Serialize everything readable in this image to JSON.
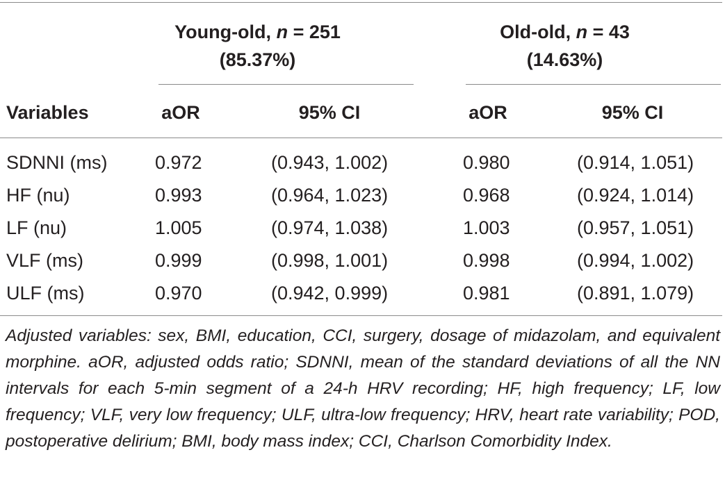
{
  "groups": [
    {
      "label": "Young-old, ",
      "n_symbol": "n",
      "n_value": " = 251",
      "pct": "(85.37%)"
    },
    {
      "label": "Old-old, ",
      "n_symbol": "n",
      "n_value": " = 43",
      "pct": "(14.63%)"
    }
  ],
  "columns": {
    "variables": "Variables",
    "aor1": "aOR",
    "ci1": "95% CI",
    "aor2": "aOR",
    "ci2": "95% CI"
  },
  "rows": [
    {
      "variable": "SDNNI (ms)",
      "aor1": "0.972",
      "ci1": "(0.943, 1.002)",
      "aor2": "0.980",
      "ci2": "(0.914, 1.051)"
    },
    {
      "variable": "HF (nu)",
      "aor1": "0.993",
      "ci1": "(0.964, 1.023)",
      "aor2": "0.968",
      "ci2": "(0.924, 1.014)"
    },
    {
      "variable": "LF (nu)",
      "aor1": "1.005",
      "ci1": "(0.974, 1.038)",
      "aor2": "1.003",
      "ci2": "(0.957, 1.051)"
    },
    {
      "variable": "VLF (ms)",
      "aor1": "0.999",
      "ci1": "(0.998, 1.001)",
      "aor2": "0.998",
      "ci2": "(0.994, 1.002)"
    },
    {
      "variable": "ULF (ms)",
      "aor1": "0.970",
      "ci1": "(0.942, 0.999)",
      "aor2": "0.981",
      "ci2": "(0.891, 1.079)"
    }
  ],
  "footnote": "Adjusted variables: sex, BMI, education, CCI, surgery, dosage of midazolam, and equivalent morphine. aOR, adjusted odds ratio; SDNNI, mean of the standard deviations of all the NN intervals for each 5-min segment of a 24-h HRV recording; HF, high frequency; LF, low frequency; VLF, very low frequency; ULF, ultra-low frequency; HRV, heart rate variability; POD, postoperative delirium; BMI, body mass index; CCI, Charlson Comorbidity Index."
}
